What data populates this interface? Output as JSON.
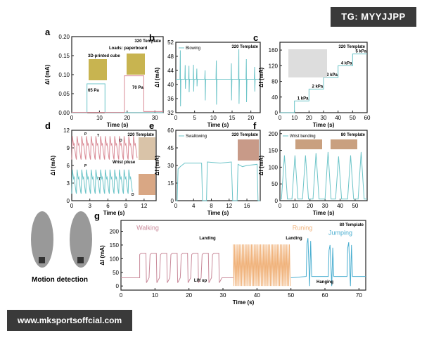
{
  "watermarks": {
    "top_right": "TG: MYYJJPP",
    "bottom_left": "www.mksportsoffcial.com"
  },
  "colors": {
    "teal": "#6cc4c8",
    "red": "#d98a95",
    "orange": "#f0b27a",
    "blue": "#4aaed0",
    "pink": "#c98a9a"
  },
  "chart_data": [
    {
      "panel": "a",
      "type": "line",
      "xlabel": "Time (s)",
      "ylabel": "ΔI (mA)",
      "xlim": [
        0,
        33
      ],
      "ylim": [
        0,
        0.2
      ],
      "xticks": [
        0,
        10,
        20,
        30
      ],
      "yticks": [
        0,
        0.05,
        0.1,
        0.15,
        0.2
      ],
      "ytick_labels": [
        "0.00",
        "0.05",
        "0.10",
        "0.15",
        "0.20"
      ],
      "template": "320 Template",
      "annotations": [
        "Loads: paperboard",
        "3D-printed cube",
        "65 Pa",
        "70 Pa"
      ],
      "series": [
        {
          "color": "#6cc4c8",
          "points": [
            [
              0,
              0
            ],
            [
              5.5,
              0
            ],
            [
              5.5,
              0.076
            ],
            [
              12,
              0.076
            ],
            [
              12,
              0
            ],
            [
              33,
              0
            ]
          ]
        },
        {
          "color": "#d98a95",
          "points": [
            [
              0,
              0.001
            ],
            [
              19,
              0.001
            ],
            [
              19,
              0.097
            ],
            [
              26,
              0.097
            ],
            [
              26,
              0.003
            ],
            [
              33,
              0.003
            ]
          ]
        }
      ]
    },
    {
      "panel": "b",
      "type": "line",
      "xlabel": "Time (s)",
      "ylabel": "ΔI (mA)",
      "xlim": [
        0,
        22.5
      ],
      "ylim": [
        32,
        52
      ],
      "xticks": [
        0,
        5,
        10,
        15,
        20
      ],
      "yticks": [
        32,
        36,
        40,
        44,
        48,
        52
      ],
      "template": "320 Template",
      "legend": "Blowing",
      "baseline": 41.5,
      "spikes": [
        [
          1.2,
          49.7,
          33.8
        ],
        [
          2.5,
          45.5,
          38.8
        ],
        [
          3.5,
          45.3,
          37.8
        ],
        [
          4.7,
          45.6,
          38
        ],
        [
          5.6,
          44.5,
          39.5
        ],
        [
          7.8,
          44,
          35.5
        ],
        [
          10.8,
          46.8,
          34.3
        ],
        [
          14.8,
          46,
          35.5
        ],
        [
          16.8,
          50,
          34.5
        ],
        [
          18.8,
          47.2,
          35
        ],
        [
          21,
          45,
          38
        ]
      ]
    },
    {
      "panel": "c",
      "type": "line",
      "xlabel": "Time (s)",
      "ylabel": "ΔI (mA)",
      "xlim": [
        0,
        60
      ],
      "ylim": [
        0,
        180
      ],
      "xticks": [
        0,
        10,
        20,
        30,
        40,
        50,
        60
      ],
      "yticks": [
        0,
        40,
        80,
        120,
        160
      ],
      "template": "320 Template",
      "annotations": [
        "1 kPa",
        "2 kPa",
        "3 kPa",
        "4 kPa",
        "5 kPa"
      ],
      "series": [
        {
          "color": "#6cc4c8",
          "points": [
            [
              0,
              0
            ],
            [
              10,
              0
            ],
            [
              10,
              30
            ],
            [
              20,
              30
            ],
            [
              20,
              60
            ],
            [
              30,
              60
            ],
            [
              30,
              90
            ],
            [
              40,
              90
            ],
            [
              40,
              120
            ],
            [
              50,
              120
            ],
            [
              50,
              150
            ],
            [
              60,
              150
            ]
          ]
        }
      ]
    },
    {
      "panel": "d",
      "type": "line",
      "xlabel": "Time (s)",
      "ylabel": "ΔI (mA)",
      "xlim": [
        0,
        14
      ],
      "ylim": [
        0,
        12
      ],
      "xticks": [
        0,
        3,
        6,
        9,
        12
      ],
      "yticks": [
        0,
        3,
        6,
        9,
        12
      ],
      "template": "320 Template",
      "annotations": [
        "P",
        "T",
        "D",
        "P",
        "T",
        "D",
        "Wrist pluse"
      ],
      "series": [
        {
          "color": "#d98a95",
          "period": 0.78,
          "start": 0,
          "end": 10.5,
          "peak": 11,
          "trough": 7
        },
        {
          "color": "#6cc4c8",
          "period": 0.78,
          "start": 0,
          "end": 10,
          "peak": 5.3,
          "trough": 1.2
        }
      ]
    },
    {
      "panel": "e",
      "type": "line",
      "xlabel": "Time (s)",
      "ylabel": "ΔI (mA)",
      "xlim": [
        0,
        19
      ],
      "ylim": [
        0,
        60
      ],
      "xticks": [
        0,
        4,
        8,
        12,
        16
      ],
      "yticks": [
        0,
        15,
        30,
        45,
        60
      ],
      "template": "320 Template",
      "legend": "Swallowing",
      "series": [
        {
          "color": "#6cc4c8",
          "points": [
            [
              0,
              0
            ],
            [
              0.3,
              0
            ],
            [
              0.5,
              27
            ],
            [
              1,
              29
            ],
            [
              2,
              32
            ],
            [
              5.8,
              32
            ],
            [
              6,
              0
            ],
            [
              6.9,
              0
            ],
            [
              7.1,
              33
            ],
            [
              10,
              32
            ],
            [
              12.5,
              33
            ],
            [
              12.8,
              0
            ],
            [
              13.8,
              0
            ],
            [
              14,
              31
            ],
            [
              15,
              29
            ],
            [
              16,
              30
            ],
            [
              18.3,
              31
            ],
            [
              18.5,
              0
            ],
            [
              19,
              0
            ]
          ]
        }
      ]
    },
    {
      "panel": "f",
      "type": "line",
      "xlabel": "Time (s)",
      "ylabel": "ΔI (mA)",
      "xlim": [
        0,
        58
      ],
      "ylim": [
        0,
        210
      ],
      "xticks": [
        0,
        10,
        20,
        30,
        40,
        50
      ],
      "yticks": [
        0,
        50,
        100,
        150,
        200
      ],
      "template": "80 Template",
      "legend": "Wrist bending",
      "baseline": 5,
      "peaks": [
        [
          3,
          135
        ],
        [
          10,
          135
        ],
        [
          17,
          135
        ],
        [
          24,
          142
        ],
        [
          32,
          145
        ],
        [
          39,
          132
        ],
        [
          47,
          135
        ],
        [
          54,
          145
        ]
      ]
    },
    {
      "panel": "g",
      "type": "line",
      "xlabel": "Time (s)",
      "ylabel": "ΔI (mA)",
      "xlim": [
        0,
        72
      ],
      "ylim": [
        -15,
        240
      ],
      "xticks": [
        0,
        10,
        20,
        30,
        40,
        50,
        60,
        70
      ],
      "yticks": [
        0,
        50,
        100,
        150,
        200
      ],
      "template": "80 Template",
      "phases": [
        {
          "label": "Walking",
          "color": "#c98a9a",
          "start": 5.5,
          "end": 30,
          "count": 8,
          "peak": 120,
          "trough": 12,
          "baseline": 30
        },
        {
          "label": "Runing",
          "color": "#f0b27a",
          "start": 33,
          "end": 50,
          "count": 38,
          "peak": 152,
          "trough": 0,
          "baseline": 33
        },
        {
          "label": "Jumping",
          "color": "#4aaed0",
          "baseline": 35,
          "spikes": [
            [
              55.5,
              175
            ],
            [
              62,
              150
            ],
            [
              67.5,
              160
            ]
          ]
        }
      ],
      "annotations": [
        "Landing",
        "Lift up",
        "Landing",
        "Hanging"
      ],
      "side_label": "Motion detection"
    }
  ]
}
